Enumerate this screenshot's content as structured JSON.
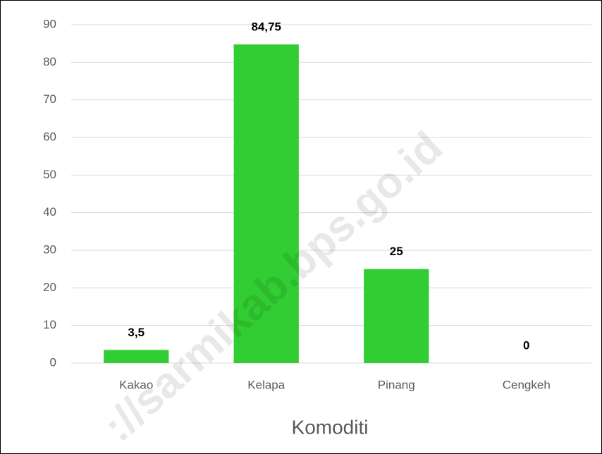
{
  "chart_data": {
    "type": "bar",
    "x_label": "Komoditi",
    "categories": [
      "Kakao",
      "Kelapa",
      "Pinang",
      "Cengkeh"
    ],
    "values": [
      3.5,
      84.75,
      25,
      0
    ],
    "value_labels": [
      "3,5",
      "84,75",
      "25",
      "0"
    ],
    "color": "#32cd32",
    "ylim": [
      0,
      90
    ],
    "yticks": [
      0,
      10,
      20,
      30,
      40,
      50,
      60,
      70,
      80,
      90
    ],
    "grid": true,
    "watermark": "://sarmikab.bps.go.id"
  }
}
